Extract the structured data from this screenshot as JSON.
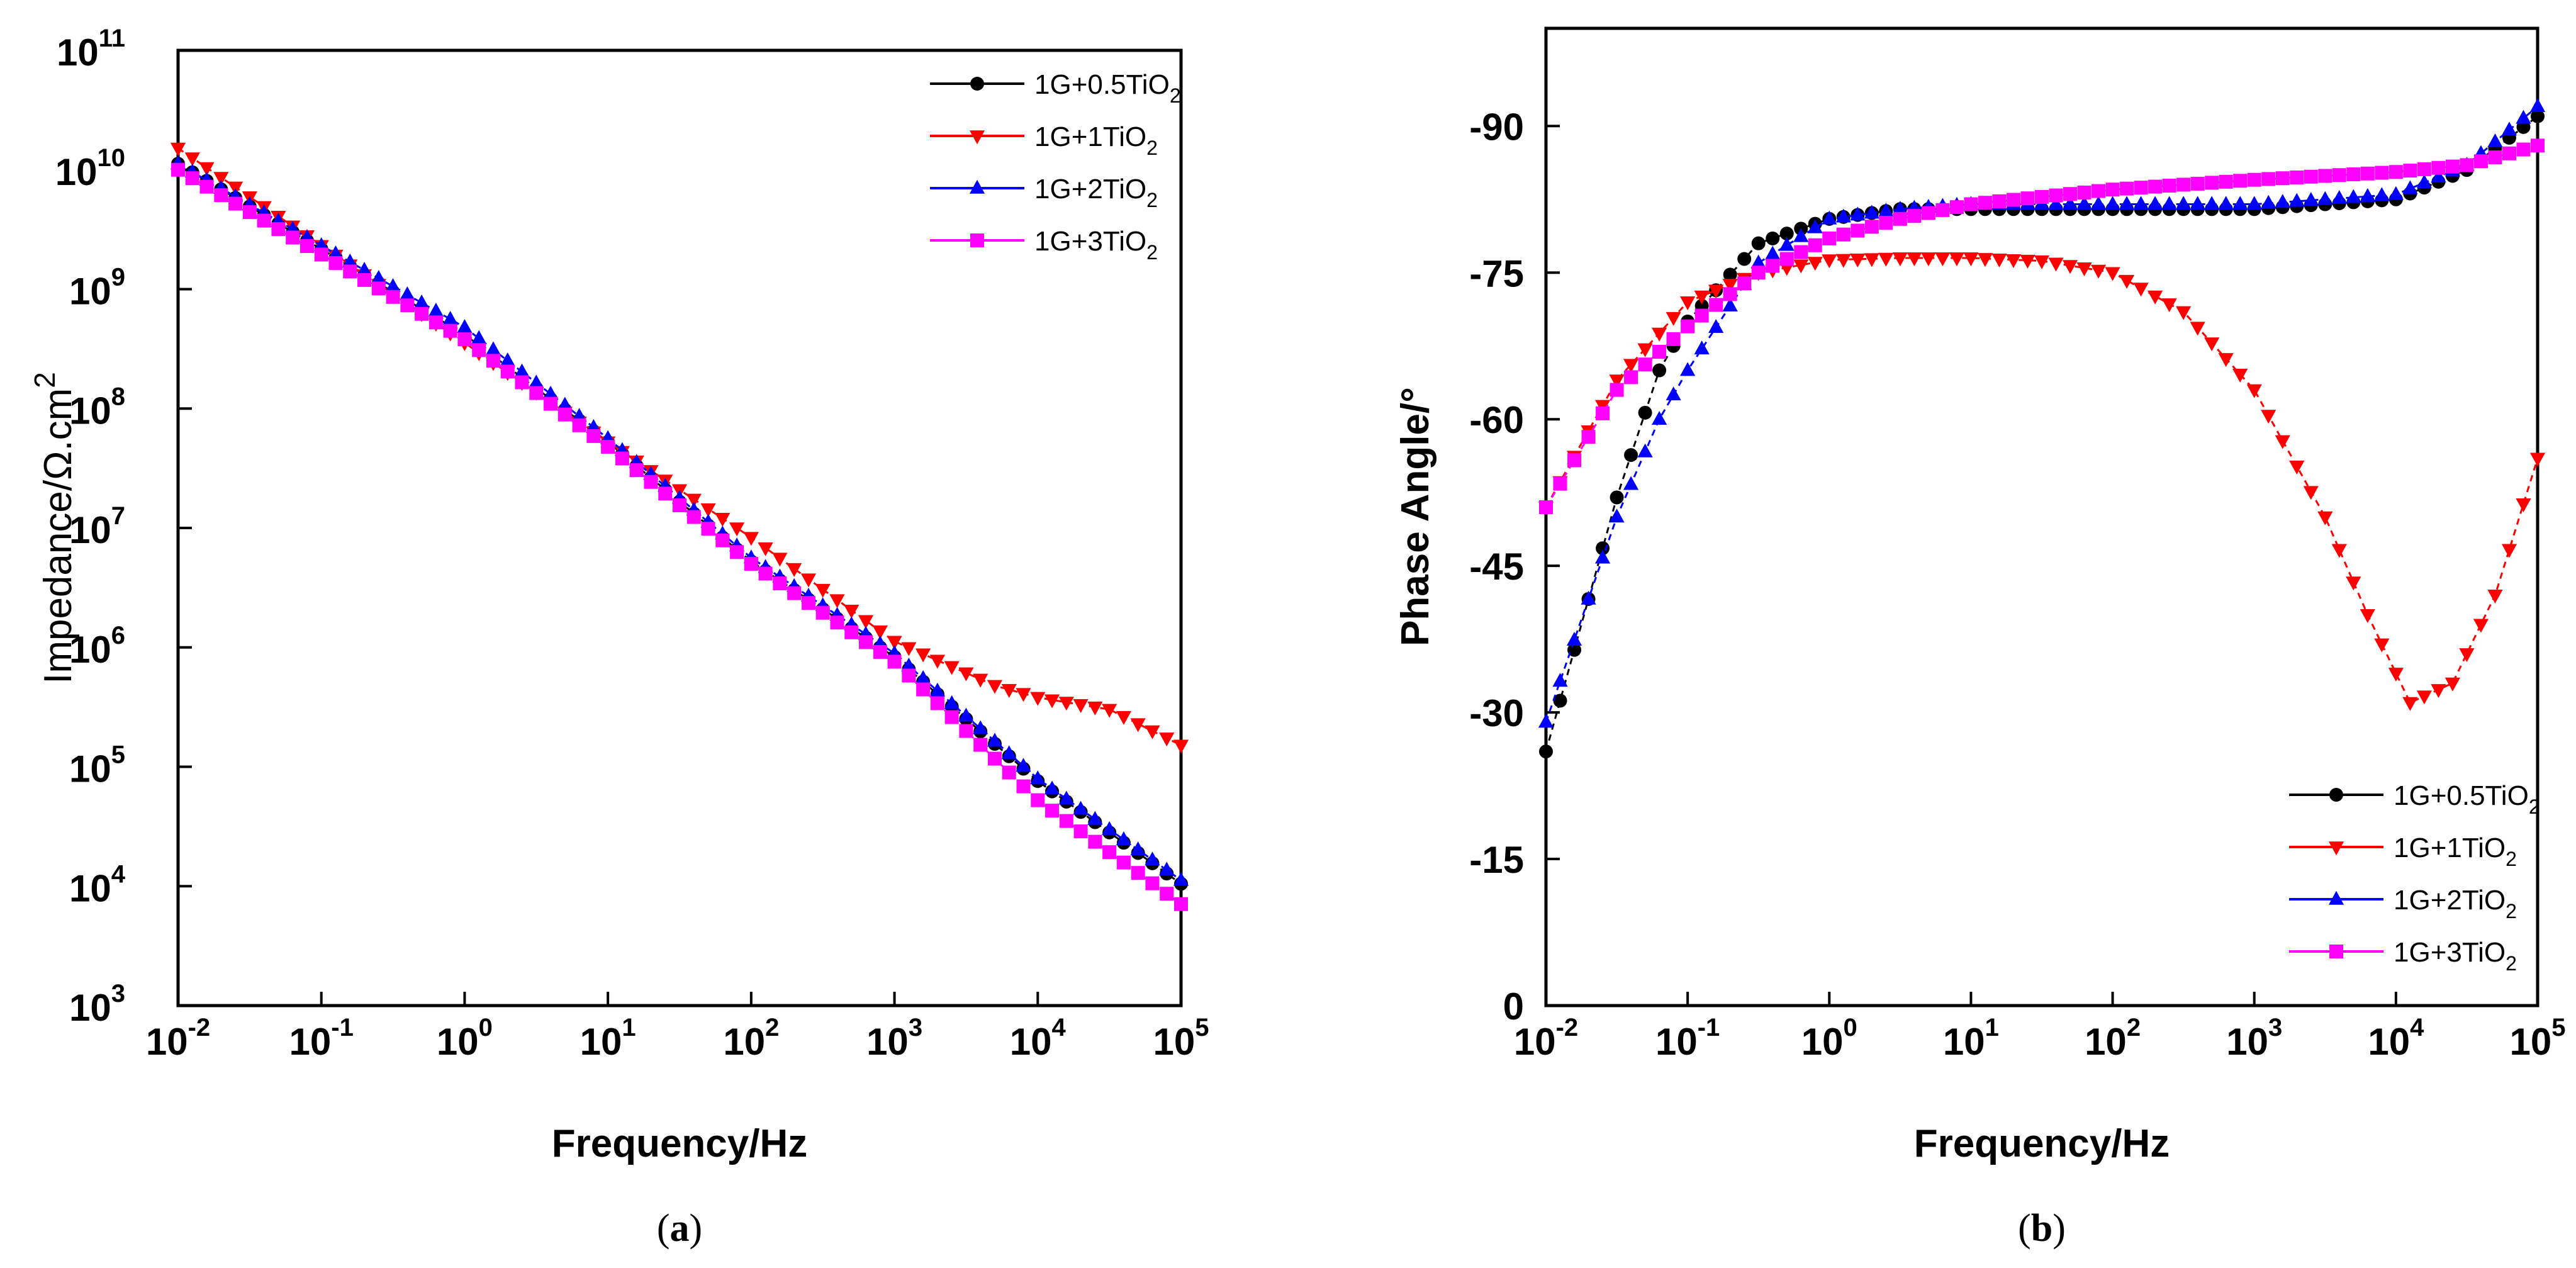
{
  "colors": {
    "black": "#000000",
    "red": "#ff0000",
    "blue": "#0000ff",
    "magenta": "#ff00ff"
  },
  "chart_data": [
    {
      "type": "scatter",
      "panel": "a",
      "caption_open": "(",
      "caption_letter": "a",
      "caption_close": ")",
      "xlabel": "Frequency/Hz",
      "ylabel": "Impedance/Ω.cm",
      "ylabel_sup": "2",
      "xscale": "log",
      "yscale": "log",
      "xlim": [
        0.01,
        100000
      ],
      "ylim": [
        1000,
        100000000000
      ],
      "x_ticks": [
        {
          "base": "10",
          "exp": "-2",
          "value": 0.01
        },
        {
          "base": "10",
          "exp": "-1",
          "value": 0.1
        },
        {
          "base": "10",
          "exp": "0",
          "value": 1
        },
        {
          "base": "10",
          "exp": "1",
          "value": 10
        },
        {
          "base": "10",
          "exp": "2",
          "value": 100
        },
        {
          "base": "10",
          "exp": "3",
          "value": 1000
        },
        {
          "base": "10",
          "exp": "4",
          "value": 10000
        },
        {
          "base": "10",
          "exp": "5",
          "value": 100000
        }
      ],
      "y_ticks": [
        {
          "base": "10",
          "exp": "3",
          "value": 1000
        },
        {
          "base": "10",
          "exp": "4",
          "value": 10000
        },
        {
          "base": "10",
          "exp": "5",
          "value": 100000
        },
        {
          "base": "10",
          "exp": "6",
          "value": 1000000
        },
        {
          "base": "10",
          "exp": "7",
          "value": 10000000
        },
        {
          "base": "10",
          "exp": "8",
          "value": 100000000
        },
        {
          "base": "10",
          "exp": "9",
          "value": 1000000000
        },
        {
          "base": "10",
          "exp": "10",
          "value": 10000000000
        },
        {
          "base": "10",
          "exp": "11",
          "value": 100000000000
        }
      ],
      "legend_position": "top-right",
      "series": [
        {
          "name": "1G+0.5TiO2",
          "label_main": "1G+0.5TiO",
          "label_sub": "2",
          "color": "#000000",
          "marker": "circle",
          "logZ_points": [
            [
              -2,
              10.05
            ],
            [
              0,
              8.62
            ],
            [
              1,
              7.72
            ],
            [
              2,
              6.72
            ],
            [
              3,
              5.92
            ],
            [
              4,
              4.88
            ],
            [
              5,
              4.02
            ]
          ]
        },
        {
          "name": "1G+1TiO2",
          "label_main": "1G+1TiO",
          "label_sub": "2",
          "color": "#ff0000",
          "marker": "triangle-down",
          "logZ_points": [
            [
              -2,
              10.18
            ],
            [
              0,
              8.55
            ],
            [
              1,
              7.72
            ],
            [
              2,
              6.92
            ],
            [
              3,
              6.05
            ],
            [
              3.7,
              5.68
            ],
            [
              4,
              5.58
            ],
            [
              4.5,
              5.48
            ],
            [
              5,
              5.18
            ]
          ]
        },
        {
          "name": "1G+2TiO2",
          "label_main": "1G+2TiO",
          "label_sub": "2",
          "color": "#0000ff",
          "marker": "triangle-up",
          "logZ_points": [
            [
              -2,
              10.05
            ],
            [
              0,
              8.68
            ],
            [
              1,
              7.75
            ],
            [
              2,
              6.75
            ],
            [
              3,
              5.95
            ],
            [
              4,
              4.9
            ],
            [
              5,
              4.05
            ]
          ]
        },
        {
          "name": "1G+3TiO2",
          "label_main": "1G+3TiO",
          "label_sub": "2",
          "color": "#ff00ff",
          "marker": "square",
          "logZ_points": [
            [
              -2,
              10.0
            ],
            [
              0,
              8.58
            ],
            [
              1,
              7.68
            ],
            [
              2,
              6.7
            ],
            [
              3,
              5.88
            ],
            [
              4,
              4.72
            ],
            [
              5,
              3.85
            ]
          ]
        }
      ]
    },
    {
      "type": "scatter",
      "panel": "b",
      "caption_open": "(",
      "caption_letter": "b",
      "caption_close": ")",
      "xlabel": "Frequency/Hz",
      "ylabel": "Phase Angle/°",
      "xscale": "log",
      "xlim": [
        0.01,
        100000
      ],
      "ylim": [
        0,
        -100
      ],
      "x_ticks": [
        {
          "base": "10",
          "exp": "-2",
          "value": 0.01
        },
        {
          "base": "10",
          "exp": "-1",
          "value": 0.1
        },
        {
          "base": "10",
          "exp": "0",
          "value": 1
        },
        {
          "base": "10",
          "exp": "1",
          "value": 10
        },
        {
          "base": "10",
          "exp": "2",
          "value": 100
        },
        {
          "base": "10",
          "exp": "3",
          "value": 1000
        },
        {
          "base": "10",
          "exp": "4",
          "value": 10000
        },
        {
          "base": "10",
          "exp": "5",
          "value": 100000
        }
      ],
      "y_ticks": [
        {
          "label": "0",
          "value": 0
        },
        {
          "label": "-15",
          "value": -15
        },
        {
          "label": "-30",
          "value": -30
        },
        {
          "label": "-45",
          "value": -45
        },
        {
          "label": "-60",
          "value": -60
        },
        {
          "label": "-75",
          "value": -75
        },
        {
          "label": "-90",
          "value": -90
        }
      ],
      "legend_position": "bottom-right",
      "series": [
        {
          "name": "1G+0.5TiO2",
          "label_main": "1G+0.5TiO",
          "label_sub": "2",
          "color": "#000000",
          "marker": "circle",
          "phase_points": [
            [
              -2,
              -26
            ],
            [
              -1.5,
              -52
            ],
            [
              -1.2,
              -65
            ],
            [
              -1,
              -70
            ],
            [
              -0.5,
              -78
            ],
            [
              0,
              -80.5
            ],
            [
              0.5,
              -81.5
            ],
            [
              1,
              -81.5
            ],
            [
              2,
              -81.5
            ],
            [
              3,
              -81.5
            ],
            [
              4,
              -82.5
            ],
            [
              4.5,
              -85.5
            ],
            [
              5,
              -91
            ]
          ]
        },
        {
          "name": "1G+1TiO2",
          "label_main": "1G+1TiO",
          "label_sub": "2",
          "color": "#ff0000",
          "marker": "triangle-down",
          "phase_points": [
            [
              -2,
              -51
            ],
            [
              -1.5,
              -64
            ],
            [
              -1,
              -72
            ],
            [
              -0.5,
              -75
            ],
            [
              0,
              -76.3
            ],
            [
              0.5,
              -76.5
            ],
            [
              1,
              -76.5
            ],
            [
              1.5,
              -76.2
            ],
            [
              2,
              -75
            ],
            [
              2.5,
              -71
            ],
            [
              3,
              -63
            ],
            [
              3.5,
              -50
            ],
            [
              3.8,
              -40
            ],
            [
              4.1,
              -31
            ],
            [
              4.4,
              -33
            ],
            [
              4.7,
              -42
            ],
            [
              5,
              -56
            ]
          ]
        },
        {
          "name": "1G+2TiO2",
          "label_main": "1G+2TiO",
          "label_sub": "2",
          "color": "#0000ff",
          "marker": "triangle-up",
          "phase_points": [
            [
              -2,
              -29
            ],
            [
              -1.5,
              -50
            ],
            [
              -1.2,
              -60
            ],
            [
              -1,
              -65
            ],
            [
              -0.5,
              -76
            ],
            [
              0,
              -80.5
            ],
            [
              0.5,
              -81.5
            ],
            [
              1,
              -82
            ],
            [
              2,
              -82
            ],
            [
              3,
              -82
            ],
            [
              4,
              -83
            ],
            [
              4.5,
              -86
            ],
            [
              5,
              -92
            ]
          ]
        },
        {
          "name": "1G+3TiO2",
          "label_main": "1G+3TiO",
          "label_sub": "2",
          "color": "#ff00ff",
          "marker": "square",
          "phase_points": [
            [
              -2,
              -51
            ],
            [
              -1.5,
              -63
            ],
            [
              -1,
              -69.5
            ],
            [
              -0.5,
              -75
            ],
            [
              0,
              -78.5
            ],
            [
              0.5,
              -80.5
            ],
            [
              1,
              -82
            ],
            [
              2,
              -83.5
            ],
            [
              3,
              -84.5
            ],
            [
              4,
              -85.3
            ],
            [
              4.5,
              -86
            ],
            [
              5,
              -88
            ]
          ]
        }
      ]
    }
  ]
}
